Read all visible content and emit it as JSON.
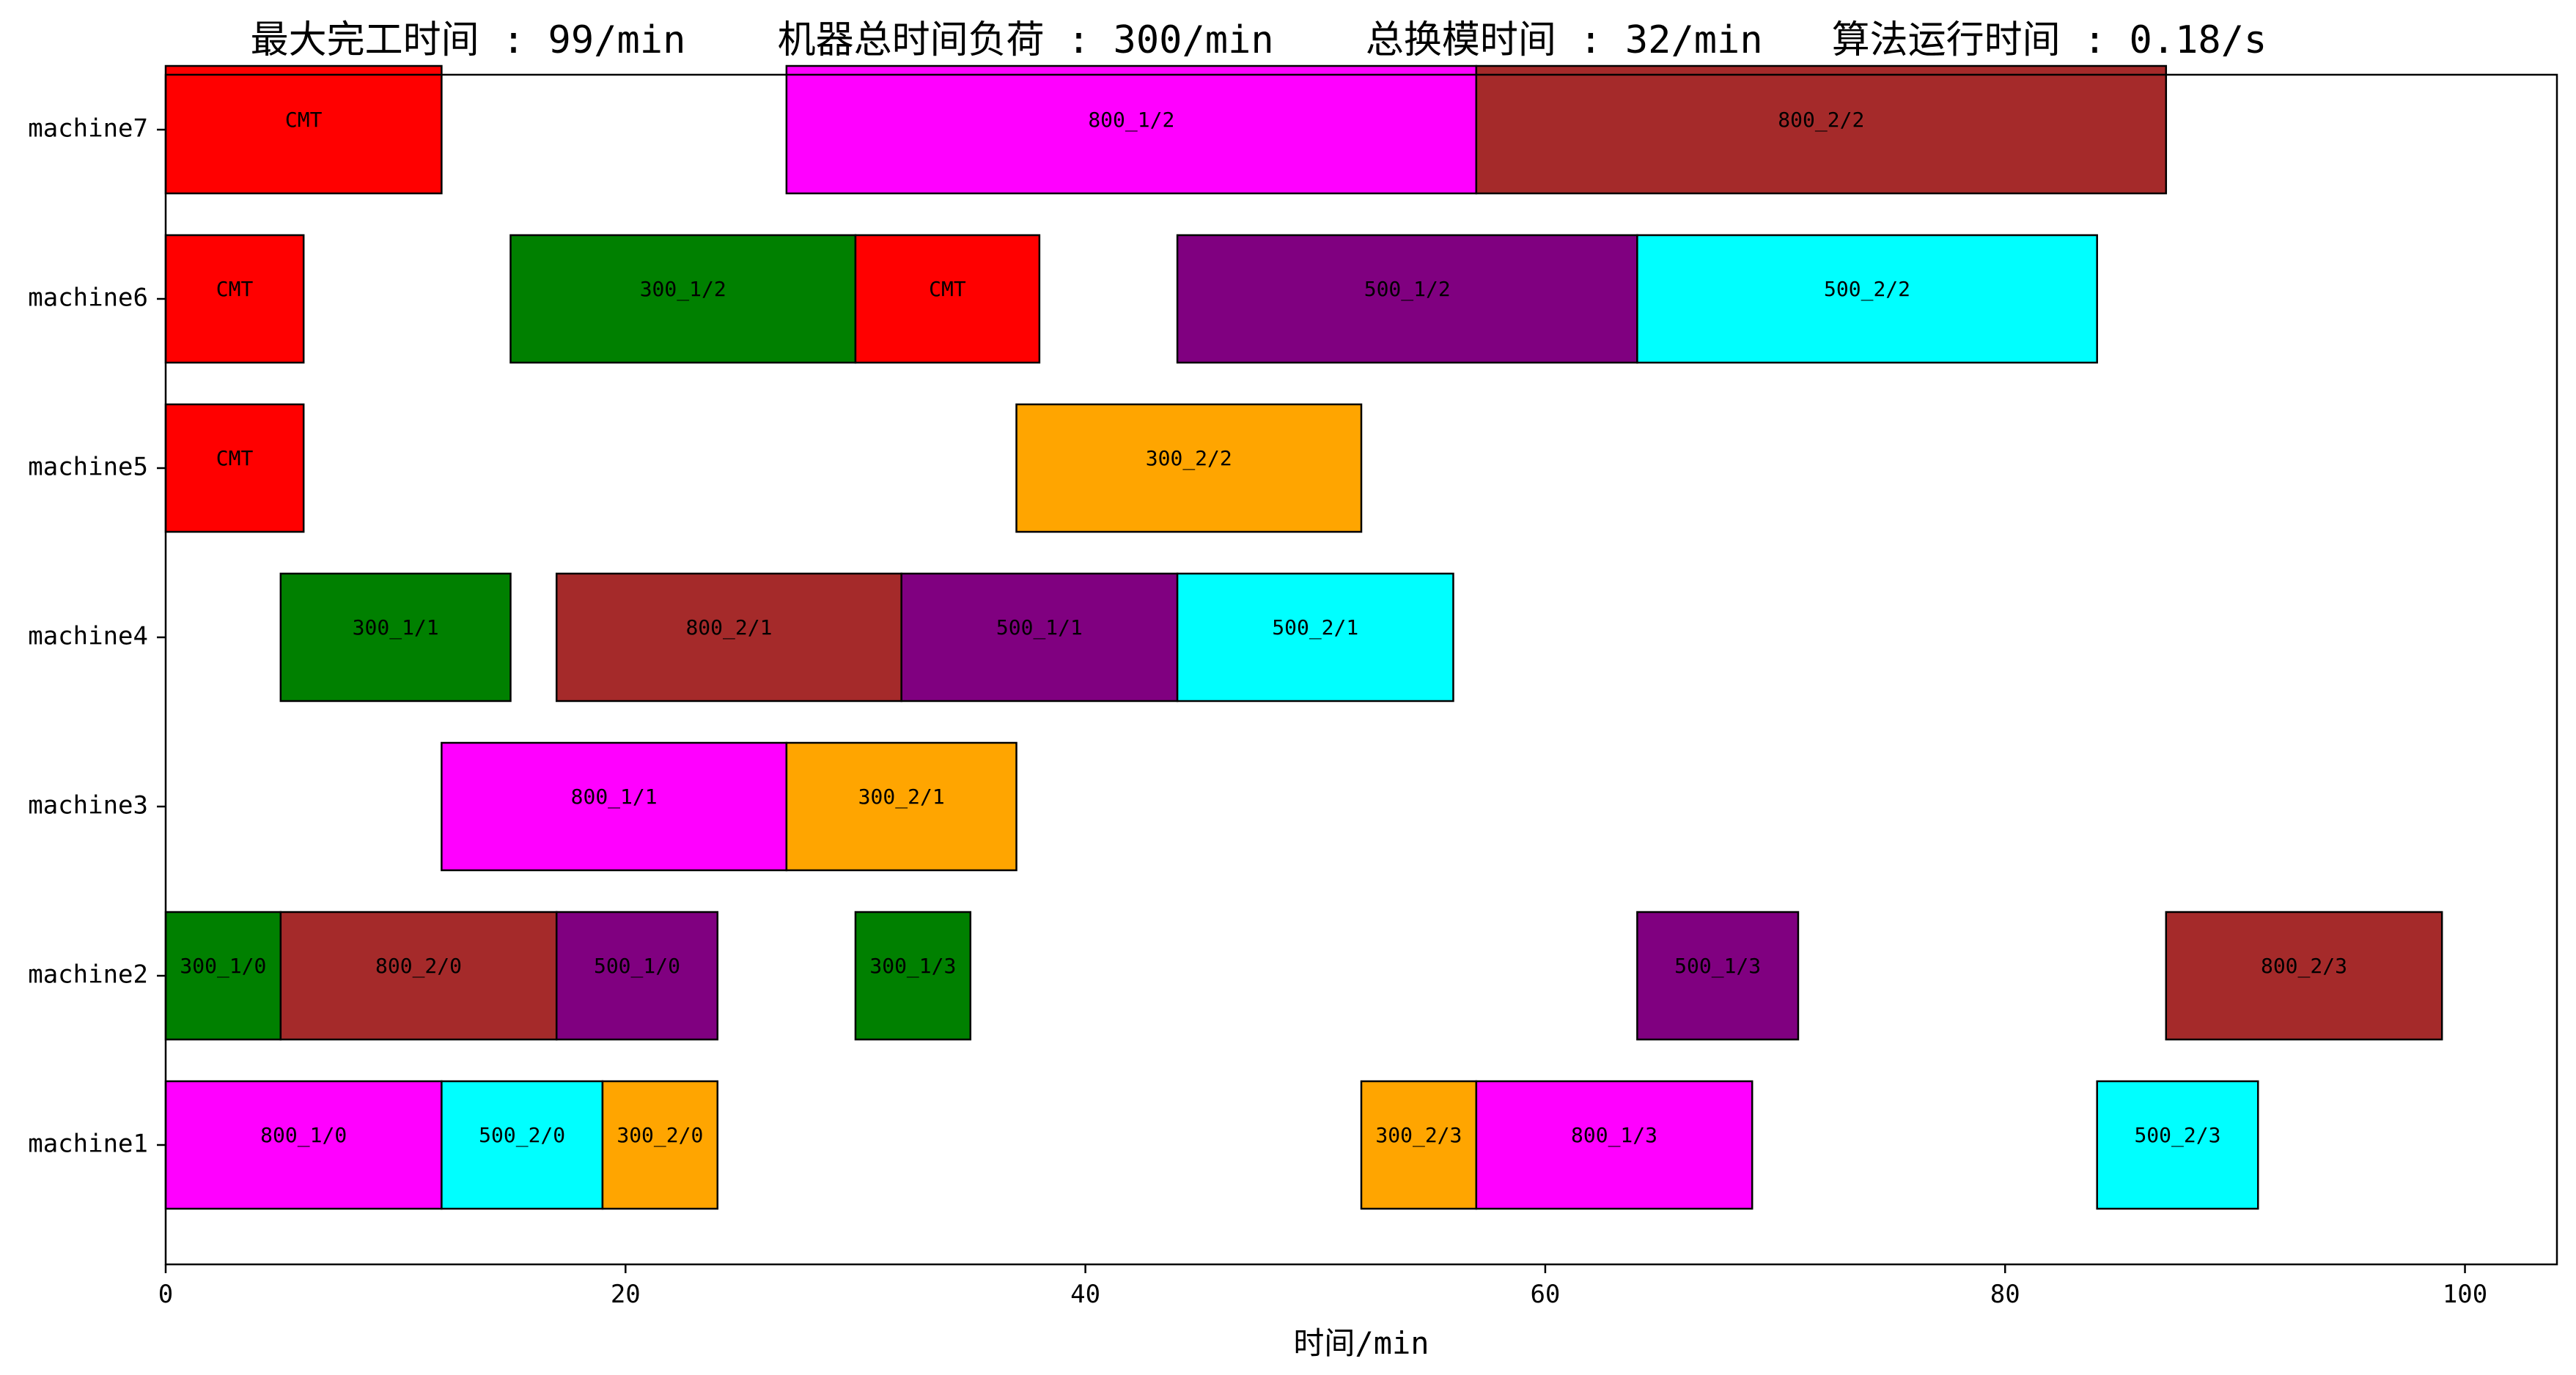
{
  "chart_data": {
    "type": "gantt",
    "title": "最大完工时间 : 99/min    机器总时间负荷 : 300/min    总换模时间 : 32/min   算法运行时间 : 0.18/s",
    "xlabel": "时间/min",
    "ylabel": "",
    "xlim": [
      0,
      104
    ],
    "xticks": [
      "0",
      "20",
      "40",
      "60",
      "80",
      "100"
    ],
    "xtick_values": [
      0,
      20,
      40,
      60,
      80,
      100
    ],
    "grid": false,
    "machines": [
      "machine1",
      "machine2",
      "machine3",
      "machine4",
      "machine5",
      "machine6",
      "machine7"
    ],
    "colors": {
      "CMT": "#ff0000",
      "300_1": "#008000",
      "300_2": "#ffa500",
      "500_1": "#800080",
      "500_2": "#00ffff",
      "800_1": "#ff00ff",
      "800_2": "#a52a2a"
    },
    "tasks": [
      {
        "machine": "machine7",
        "label": "CMT",
        "group": "CMT",
        "start": 0,
        "end": 12
      },
      {
        "machine": "machine7",
        "label": "800_1/2",
        "group": "800_1",
        "start": 27,
        "end": 57
      },
      {
        "machine": "machine7",
        "label": "800_2/2",
        "group": "800_2",
        "start": 57,
        "end": 87
      },
      {
        "machine": "machine6",
        "label": "CMT",
        "group": "CMT",
        "start": 0,
        "end": 6
      },
      {
        "machine": "machine6",
        "label": "300_1/2",
        "group": "300_1",
        "start": 15,
        "end": 30
      },
      {
        "machine": "machine6",
        "label": "CMT",
        "group": "CMT",
        "start": 30,
        "end": 38
      },
      {
        "machine": "machine6",
        "label": "500_1/2",
        "group": "500_1",
        "start": 44,
        "end": 64
      },
      {
        "machine": "machine6",
        "label": "500_2/2",
        "group": "500_2",
        "start": 64,
        "end": 84
      },
      {
        "machine": "machine5",
        "label": "CMT",
        "group": "CMT",
        "start": 0,
        "end": 6
      },
      {
        "machine": "machine5",
        "label": "300_2/2",
        "group": "300_2",
        "start": 37,
        "end": 52
      },
      {
        "machine": "machine4",
        "label": "300_1/1",
        "group": "300_1",
        "start": 5,
        "end": 15
      },
      {
        "machine": "machine4",
        "label": "800_2/1",
        "group": "800_2",
        "start": 17,
        "end": 32
      },
      {
        "machine": "machine4",
        "label": "500_1/1",
        "group": "500_1",
        "start": 32,
        "end": 44
      },
      {
        "machine": "machine4",
        "label": "500_2/1",
        "group": "500_2",
        "start": 44,
        "end": 56
      },
      {
        "machine": "machine3",
        "label": "800_1/1",
        "group": "800_1",
        "start": 12,
        "end": 27
      },
      {
        "machine": "machine3",
        "label": "300_2/1",
        "group": "300_2",
        "start": 27,
        "end": 37
      },
      {
        "machine": "machine2",
        "label": "300_1/0",
        "group": "300_1",
        "start": 0,
        "end": 5
      },
      {
        "machine": "machine2",
        "label": "800_2/0",
        "group": "800_2",
        "start": 5,
        "end": 17
      },
      {
        "machine": "machine2",
        "label": "500_1/0",
        "group": "500_1",
        "start": 17,
        "end": 24
      },
      {
        "machine": "machine2",
        "label": "300_1/3",
        "group": "300_1",
        "start": 30,
        "end": 35
      },
      {
        "machine": "machine2",
        "label": "500_1/3",
        "group": "500_1",
        "start": 64,
        "end": 71
      },
      {
        "machine": "machine2",
        "label": "800_2/3",
        "group": "800_2",
        "start": 87,
        "end": 99
      },
      {
        "machine": "machine1",
        "label": "800_1/0",
        "group": "800_1",
        "start": 0,
        "end": 12
      },
      {
        "machine": "machine1",
        "label": "500_2/0",
        "group": "500_2",
        "start": 12,
        "end": 19
      },
      {
        "machine": "machine1",
        "label": "300_2/0",
        "group": "300_2",
        "start": 19,
        "end": 24
      },
      {
        "machine": "machine1",
        "label": "300_2/3",
        "group": "300_2",
        "start": 52,
        "end": 57
      },
      {
        "machine": "machine1",
        "label": "800_1/3",
        "group": "800_1",
        "start": 57,
        "end": 69
      },
      {
        "machine": "machine1",
        "label": "500_2/3",
        "group": "500_2",
        "start": 84,
        "end": 91
      }
    ]
  }
}
